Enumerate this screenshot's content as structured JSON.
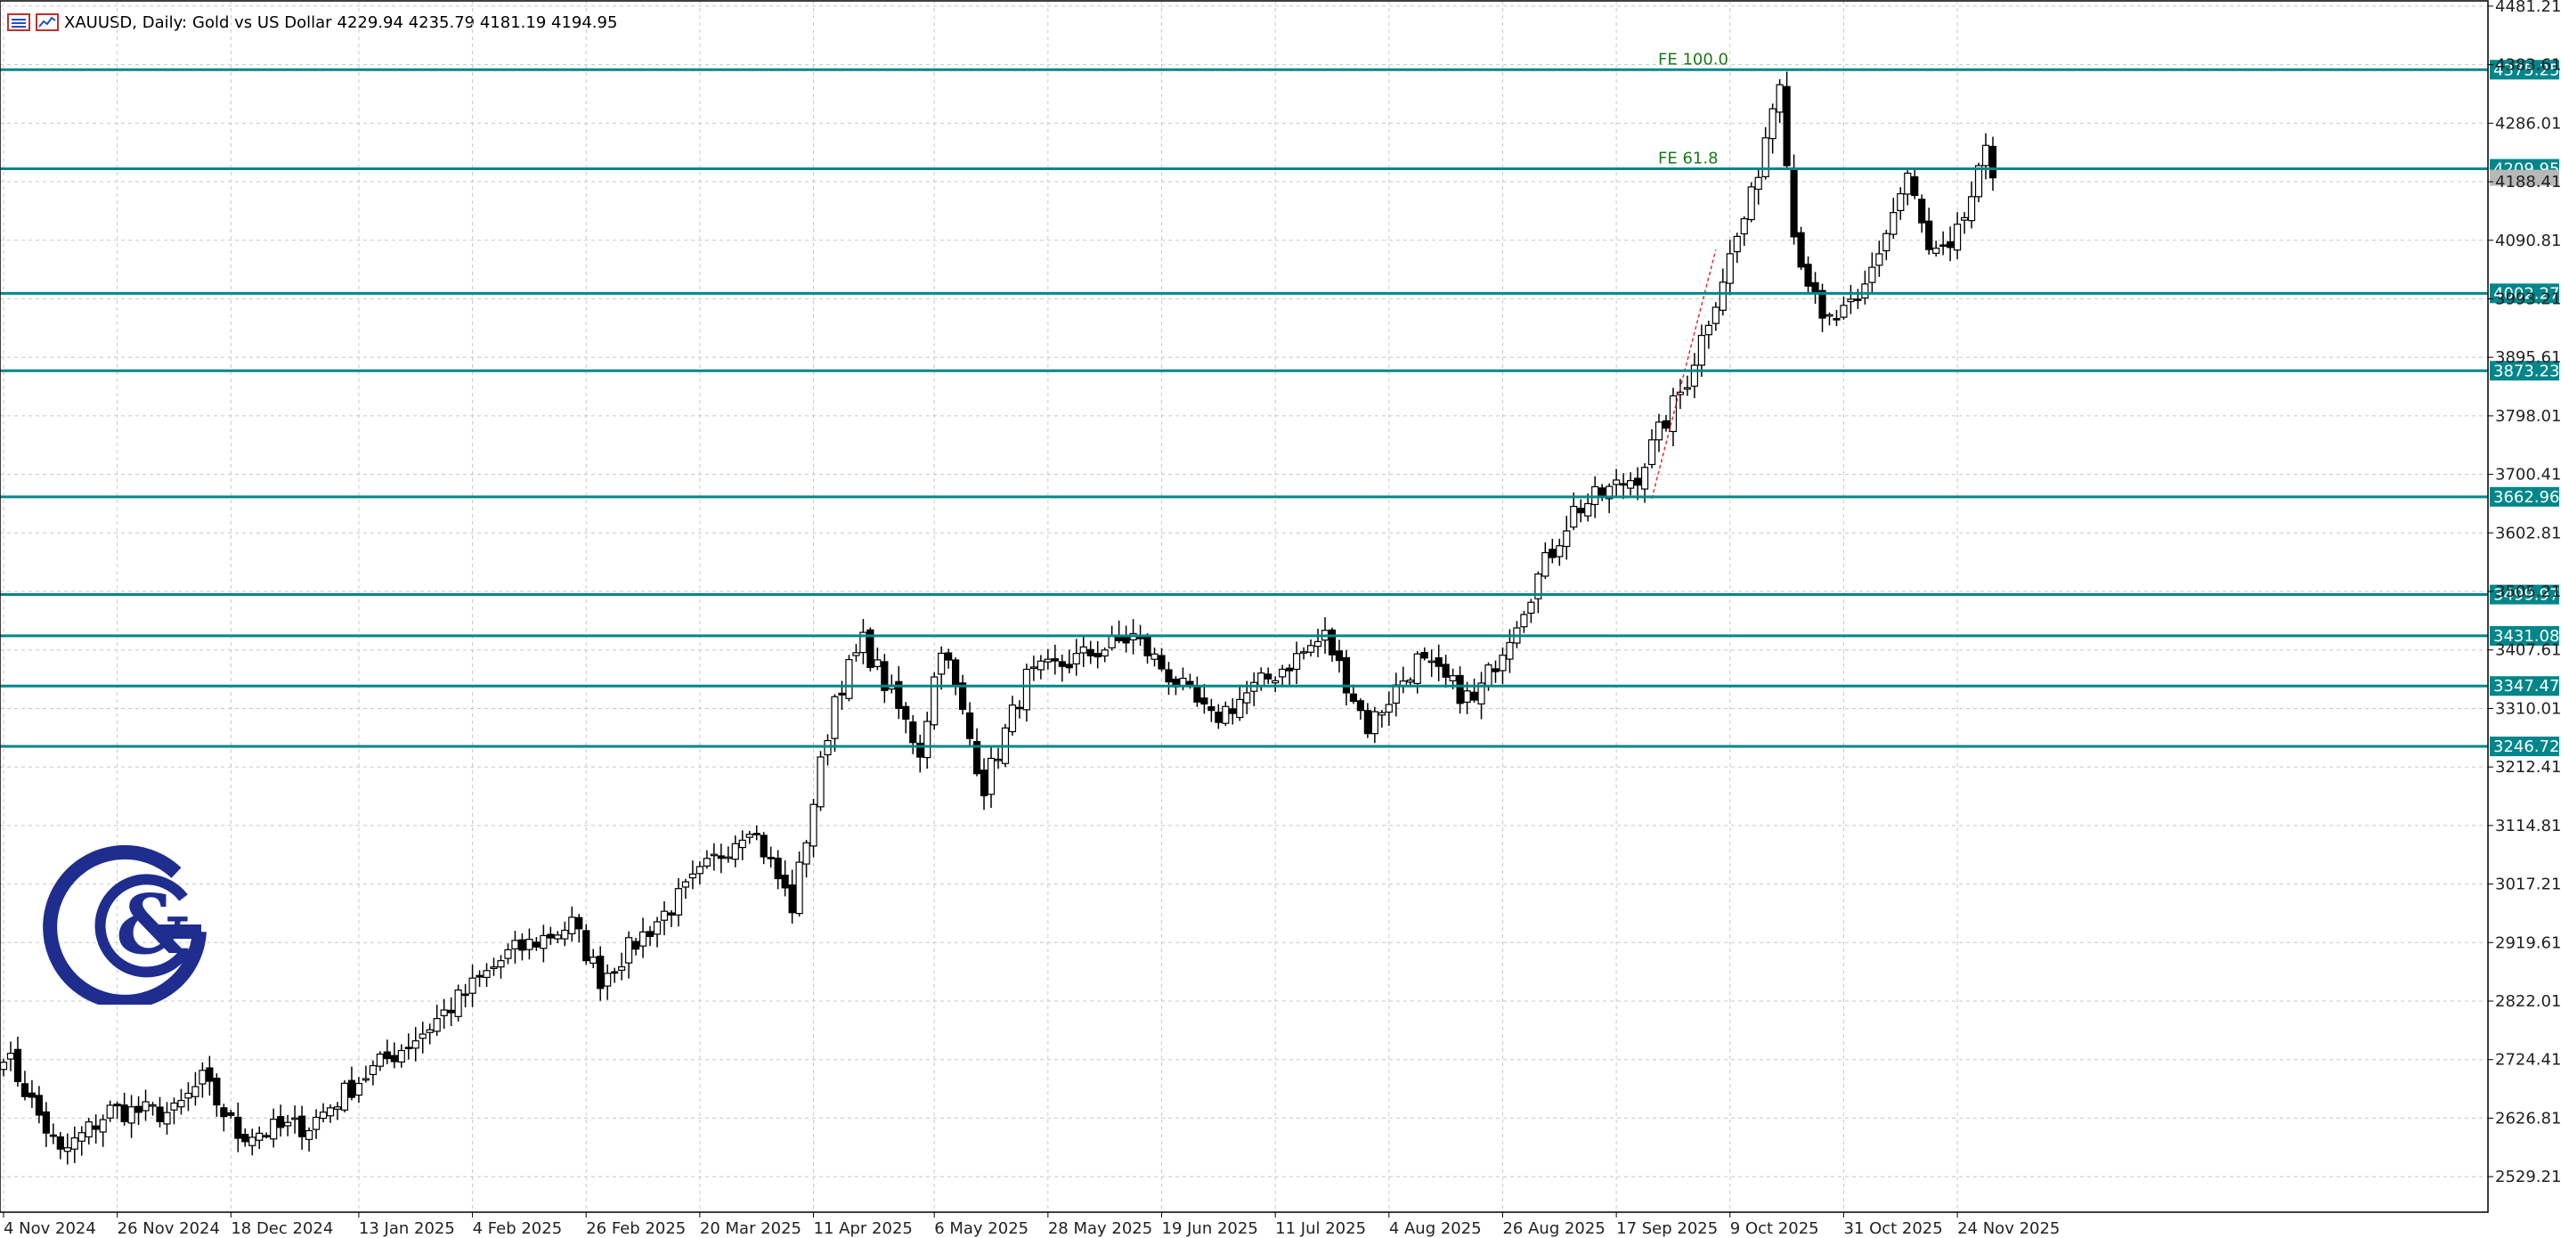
{
  "header": {
    "symbol": "XAUUSD, Daily:",
    "description": "Gold vs US Dollar",
    "ohlc": "4229.94 4235.79 4181.19 4194.95"
  },
  "colors": {
    "level_line": "#00868a",
    "candle": "#000000",
    "grid": "#c8c8c8",
    "fe_label": "#1a7a1a",
    "projection": "#e03030",
    "logo": "#1f2d8f"
  },
  "logo_icon": "g-and-ampersand-logo",
  "chart_data": {
    "type": "candlestick",
    "title": "XAUUSD, Daily: Gold vs US Dollar",
    "ylim": [
      2470,
      4490
    ],
    "y_ticks": [
      "4481.21",
      "4383.61",
      "4286.01",
      "4188.41",
      "4090.81",
      "3993.21",
      "3895.61",
      "3798.01",
      "3700.41",
      "3602.81",
      "3505.21",
      "3407.61",
      "3310.01",
      "3212.41",
      "3114.81",
      "3017.21",
      "2919.61",
      "2822.01",
      "2724.41",
      "2626.81",
      "2529.21"
    ],
    "x_ticks": [
      "4 Nov 2024",
      "26 Nov 2024",
      "18 Dec 2024",
      "13 Jan 2025",
      "4 Feb 2025",
      "26 Feb 2025",
      "20 Mar 2025",
      "11 Apr 2025",
      "6 May 2025",
      "28 May 2025",
      "19 Jun 2025",
      "11 Jul 2025",
      "4 Aug 2025",
      "26 Aug 2025",
      "17 Sep 2025",
      "9 Oct 2025",
      "31 Oct 2025",
      "24 Nov 2025"
    ],
    "levels": [
      {
        "value": 4375.25,
        "label": "4375.25"
      },
      {
        "value": 4209.95,
        "label": "4209.95"
      },
      {
        "value": 4002.27,
        "label": "4002.27"
      },
      {
        "value": 3873.23,
        "label": "3873.23"
      },
      {
        "value": 3662.96,
        "label": "3662.96"
      },
      {
        "value": 3499.97,
        "label": "3499.97"
      },
      {
        "value": 3431.08,
        "label": "3431.08"
      },
      {
        "value": 3347.47,
        "label": "3347.47"
      },
      {
        "value": 3246.72,
        "label": "3246.72"
      }
    ],
    "fib_labels": [
      {
        "text": "FE 100.0",
        "value": 4375.25
      },
      {
        "text": "FE 61.8",
        "value": 4209.95
      }
    ],
    "current_price": 4194.95,
    "anchors": [
      {
        "date": "2024-11-04",
        "close": 2740
      },
      {
        "date": "2024-11-14",
        "close": 2565
      },
      {
        "date": "2024-11-25",
        "close": 2640
      },
      {
        "date": "2024-12-06",
        "close": 2635
      },
      {
        "date": "2024-12-12",
        "close": 2690
      },
      {
        "date": "2024-12-19",
        "close": 2600
      },
      {
        "date": "2025-01-02",
        "close": 2615
      },
      {
        "date": "2025-01-13",
        "close": 2690
      },
      {
        "date": "2025-01-24",
        "close": 2770
      },
      {
        "date": "2025-02-11",
        "close": 2900
      },
      {
        "date": "2025-02-24",
        "close": 2950
      },
      {
        "date": "2025-02-28",
        "close": 2860
      },
      {
        "date": "2025-03-14",
        "close": 2980
      },
      {
        "date": "2025-03-31",
        "close": 3120
      },
      {
        "date": "2025-04-08",
        "close": 2980
      },
      {
        "date": "2025-04-16",
        "close": 3330
      },
      {
        "date": "2025-04-22",
        "close": 3420
      },
      {
        "date": "2025-05-02",
        "close": 3240
      },
      {
        "date": "2025-05-07",
        "close": 3420
      },
      {
        "date": "2025-05-15",
        "close": 3180
      },
      {
        "date": "2025-05-23",
        "close": 3360
      },
      {
        "date": "2025-06-13",
        "close": 3430
      },
      {
        "date": "2025-06-30",
        "close": 3290
      },
      {
        "date": "2025-07-22",
        "close": 3430
      },
      {
        "date": "2025-07-30",
        "close": 3280
      },
      {
        "date": "2025-08-08",
        "close": 3390
      },
      {
        "date": "2025-08-20",
        "close": 3320
      },
      {
        "date": "2025-09-02",
        "close": 3530
      },
      {
        "date": "2025-09-09",
        "close": 3640
      },
      {
        "date": "2025-09-22",
        "close": 3700
      },
      {
        "date": "2025-10-01",
        "close": 3860
      },
      {
        "date": "2025-10-08",
        "close": 4030
      },
      {
        "date": "2025-10-14",
        "close": 4160
      },
      {
        "date": "2025-10-20",
        "close": 4370
      },
      {
        "date": "2025-10-22",
        "close": 4100
      },
      {
        "date": "2025-10-28",
        "close": 3950
      },
      {
        "date": "2025-11-04",
        "close": 3980
      },
      {
        "date": "2025-11-13",
        "close": 4200
      },
      {
        "date": "2025-11-18",
        "close": 4070
      },
      {
        "date": "2025-11-21",
        "close": 4065
      },
      {
        "date": "2025-11-28",
        "close": 4230
      },
      {
        "date": "2025-12-01",
        "close": 4195
      }
    ]
  }
}
